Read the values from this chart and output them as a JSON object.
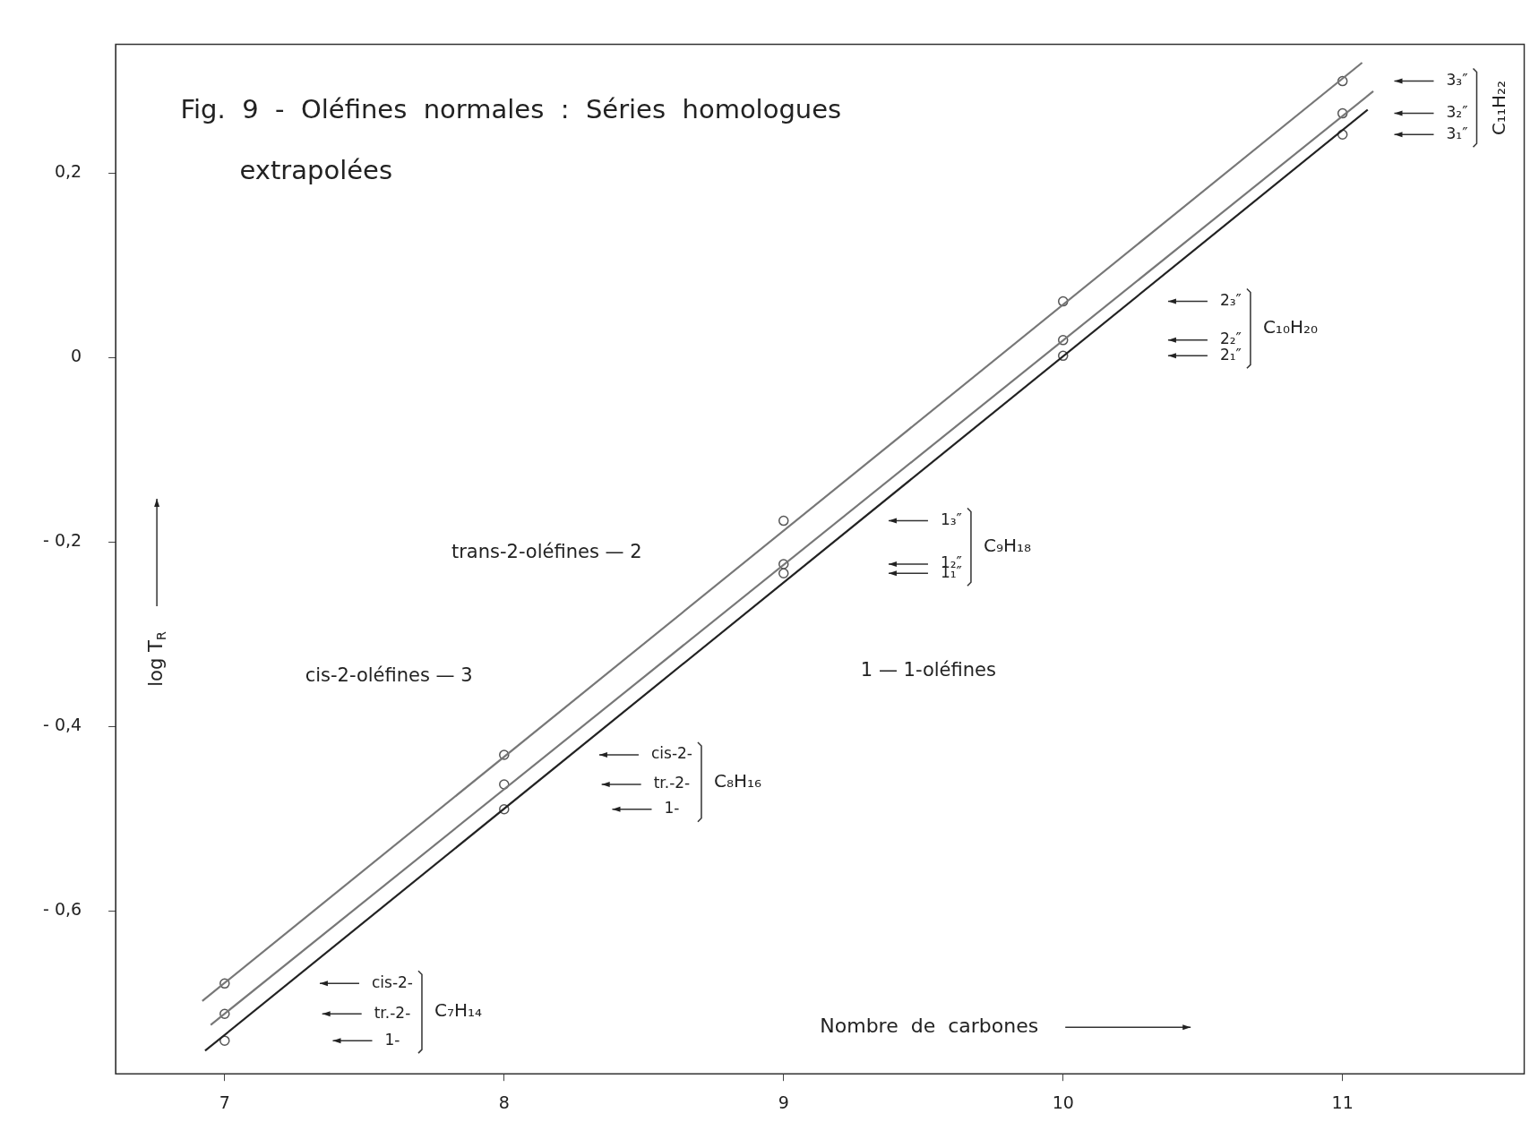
{
  "chart_data": {
    "type": "scatter",
    "title": "Fig. 9 - Oléfines normales : Séries homologues extrapolées",
    "xlabel": "Nombre de carbones",
    "ylabel": "log T$_{R}$",
    "xlim": [
      6.61,
      11.65
    ],
    "ylim": [
      -0.777,
      0.34
    ],
    "xticks": [
      7,
      8,
      9,
      10,
      11
    ],
    "yticks": [
      {
        "value": -0.6,
        "label": "- 0,6"
      },
      {
        "value": -0.4,
        "label": "- 0,4"
      },
      {
        "value": -0.2,
        "label": "- 0,2"
      },
      0,
      {
        "value": 0.2,
        "label": "0,2"
      }
    ],
    "grid": false,
    "legend": false,
    "series": [
      {
        "type": "line",
        "color": "#777777",
        "marker": "none",
        "line_style": "solid",
        "x": [
          6.92,
          11.07
        ],
        "values": [
          -0.698,
          0.32
        ]
      },
      {
        "type": "line",
        "color": "#777777",
        "marker": "none",
        "line_style": "solid",
        "x": [
          6.95,
          11.11
        ],
        "values": [
          -0.724,
          0.289
        ]
      },
      {
        "type": "line",
        "color": "#222222",
        "marker": "none",
        "line_style": "solid",
        "x": [
          6.93,
          11.09
        ],
        "values": [
          -0.752,
          0.269
        ]
      },
      {
        "type": "scatter",
        "color": "#555555",
        "marker": "circle",
        "x": [
          7,
          8,
          9,
          10,
          11
        ],
        "values": [
          -0.679,
          -0.431,
          -0.177,
          0.061,
          0.3
        ]
      },
      {
        "type": "scatter",
        "color": "#555555",
        "marker": "circle",
        "x": [
          7,
          8,
          9,
          10,
          11
        ],
        "values": [
          -0.712,
          -0.463,
          -0.224,
          0.019,
          0.265
        ]
      },
      {
        "type": "scatter",
        "color": "#555555",
        "marker": "circle",
        "x": [
          7,
          8,
          9,
          10,
          11
        ],
        "values": [
          -0.741,
          -0.49,
          -0.234,
          0.002,
          0.242
        ]
      }
    ],
    "annotations": [
      "3₃″",
      "3₂″",
      "3₁″",
      "C₁₁H₂₂",
      "2₃″",
      "2₂″",
      "2₁″",
      "C₁₀H₂₀",
      "1₃″",
      "1₂″",
      "1₁″",
      "C₉H₁₈",
      "cis-2-",
      "tr.-2-",
      "1-",
      "C₈H₁₆",
      "cis-2-",
      "tr.-2-",
      "1-",
      "C₇H₁₄",
      "trans-2-oléfines — 2",
      "cis-2-oléfines — 3",
      "1 — 1-oléfines"
    ]
  }
}
